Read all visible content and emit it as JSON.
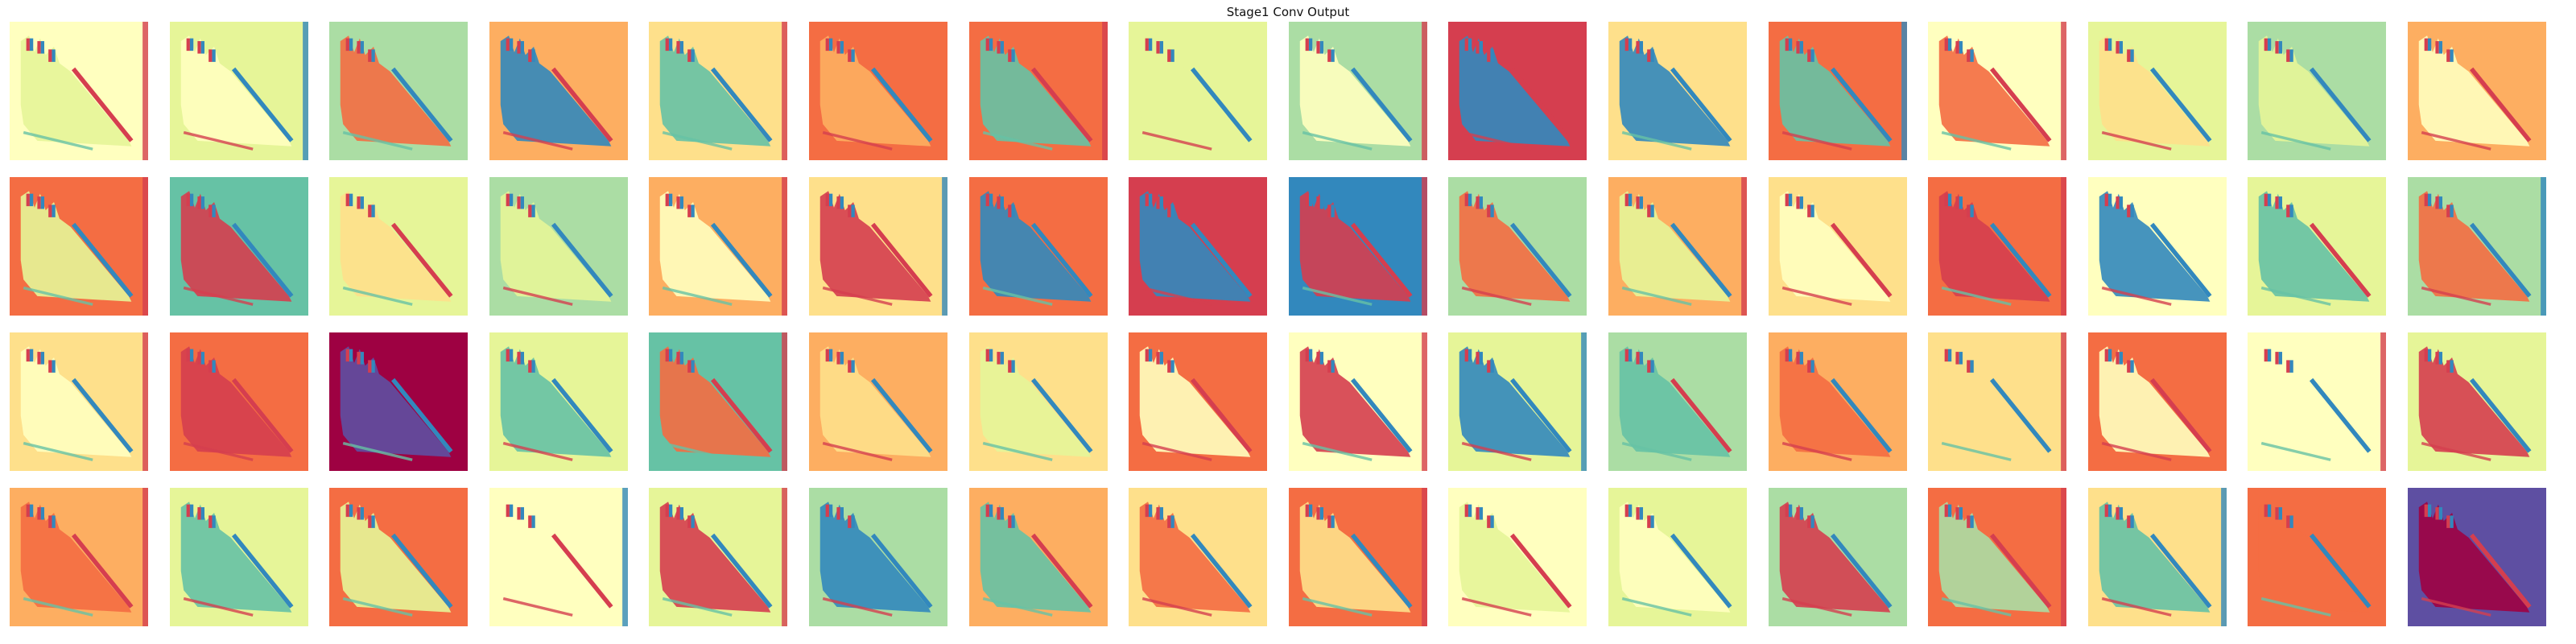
{
  "figure": {
    "title": "Stage1 Conv Output",
    "rows": 4,
    "cols": 16,
    "colormap": "Spectral",
    "palette": {
      "dark_red": "#9e0142",
      "red": "#d53e4f",
      "orange": "#f46d43",
      "light_orange": "#fdae61",
      "pale_yellow": "#fee08b",
      "cream": "#ffffbf",
      "light_green": "#e6f598",
      "green": "#abdda4",
      "teal": "#66c2a5",
      "blue": "#3288bd",
      "purple_blue": "#5e4fa2"
    }
  }
}
